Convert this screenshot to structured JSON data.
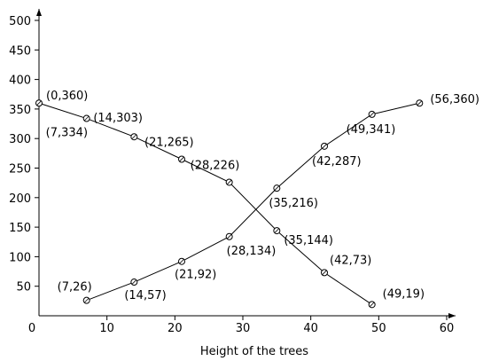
{
  "chart_data": {
    "type": "line",
    "xlabel": "Height of the trees",
    "ylabel": "",
    "title": "",
    "xlim": [
      0,
      60
    ],
    "ylim": [
      0,
      500
    ],
    "x_ticks": [
      0,
      10,
      20,
      30,
      40,
      50,
      60
    ],
    "y_ticks": [
      50,
      100,
      150,
      200,
      250,
      300,
      350,
      400,
      450,
      500
    ],
    "x_tick_labels": [
      "0",
      "10",
      "20",
      "30",
      "40",
      "50",
      "60"
    ],
    "y_tick_labels": [
      "50",
      "100",
      "150",
      "200",
      "250",
      "300",
      "350",
      "400",
      "450",
      "500"
    ],
    "grid": false,
    "series": [
      {
        "points": [
          [
            0,
            360
          ],
          [
            7,
            334
          ],
          [
            14,
            303
          ],
          [
            21,
            265
          ],
          [
            28,
            226
          ],
          [
            35,
            144
          ],
          [
            42,
            73
          ],
          [
            49,
            19
          ]
        ],
        "labels": [
          "(0,360)",
          "(7,334)",
          "(14,303)",
          "(21,265)",
          "(28,226)",
          "(35,144)",
          "(42,73)",
          "(49,19)"
        ]
      },
      {
        "points": [
          [
            7,
            26
          ],
          [
            14,
            57
          ],
          [
            21,
            92
          ],
          [
            28,
            134
          ],
          [
            35,
            216
          ],
          [
            42,
            287
          ],
          [
            49,
            341
          ],
          [
            56,
            360
          ]
        ],
        "labels": [
          "(7,26)",
          "(14,57)",
          "(21,92)",
          "(28,134)",
          "(35,216)",
          "(42,287)",
          "(49,341)",
          "(56,360)"
        ]
      }
    ]
  }
}
